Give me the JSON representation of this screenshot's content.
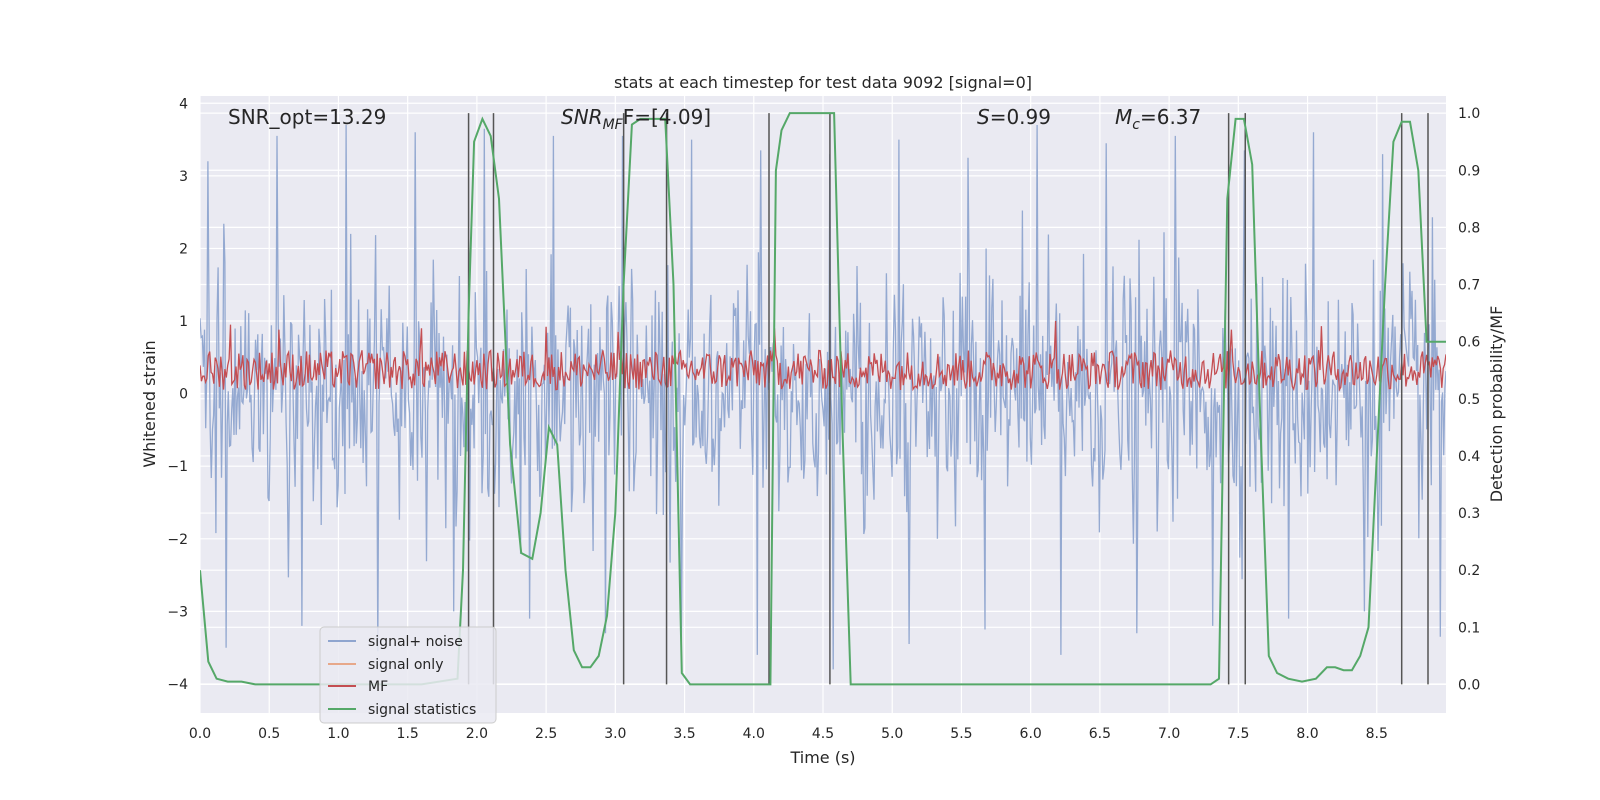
{
  "chart_data": {
    "type": "line",
    "title": "stats at each timestep for test data 9092 [signal=0]",
    "xlabel": "Time (s)",
    "ylabel": "Whitened strain",
    "y2label": "Detection probability/MF",
    "xlim": [
      0,
      9.0
    ],
    "ylim": [
      -4.4,
      4.1
    ],
    "y2lim": [
      -0.05,
      1.03
    ],
    "xticks": [
      0.0,
      0.5,
      1.0,
      1.5,
      2.0,
      2.5,
      3.0,
      3.5,
      4.0,
      4.5,
      5.0,
      5.5,
      6.0,
      6.5,
      7.0,
      7.5,
      8.0,
      8.5
    ],
    "xtick_labels": [
      "0.0",
      "0.5",
      "1.0",
      "1.5",
      "2.0",
      "2.5",
      "3.0",
      "3.5",
      "4.0",
      "4.5",
      "5.0",
      "5.5",
      "6.0",
      "6.5",
      "7.0",
      "7.5",
      "8.0",
      "8.5"
    ],
    "yticks": [
      4,
      3,
      2,
      1,
      0,
      -1,
      -2,
      -3,
      -4
    ],
    "ytick_labels": [
      "4",
      "3",
      "2",
      "1",
      "0",
      "−1",
      "−2",
      "−3",
      "−4"
    ],
    "y2ticks": [
      1.0,
      0.9,
      0.8,
      0.7,
      0.6,
      0.5,
      0.4,
      0.3,
      0.2,
      0.1,
      0.0
    ],
    "y2tick_labels": [
      "1.0",
      "0.9",
      "0.8",
      "0.7",
      "0.6",
      "0.5",
      "0.4",
      "0.3",
      "0.2",
      "0.1",
      "0.0"
    ],
    "grid": true,
    "legend_position": "lower-left",
    "annotations": {
      "snr_opt": "SNR_opt=13.29",
      "snr_mf_base": "SNR",
      "snr_mf_sub": "MF",
      "snr_mf_rest": "F=[4.09]",
      "s_base": "S",
      "s_rest": "=0.99",
      "mc_base": "M",
      "mc_sub": "c",
      "mc_rest": "=6.37"
    },
    "series": [
      {
        "name": "signal+ noise",
        "color": "#8fa5cf",
        "axis": "left",
        "description": "dense noise trace, mostly within ±2 with spikes to ±3.5",
        "band_mean": 0.0,
        "band_std": 0.85,
        "peaks_up": [
          3.2,
          3.55,
          3.7,
          3.6,
          3.65,
          3.55,
          3.55,
          3.5,
          3.35,
          3.3,
          3.5,
          3.25,
          3.7,
          3.45,
          3.55,
          3.35,
          3.6,
          3.3
        ],
        "peaks_down": [
          -3.5,
          -3.2,
          -3.55,
          -3.0,
          -3.1,
          -3.3,
          -3.4,
          -3.6,
          -3.8,
          -3.45,
          -3.25,
          -3.6,
          -3.3,
          -3.2,
          -3.1,
          -3.0,
          -3.35,
          -3.5
        ]
      },
      {
        "name": "signal only",
        "color": "#e7a88a",
        "axis": "left",
        "values": []
      },
      {
        "name": "MF",
        "color": "#c44e52",
        "axis": "left",
        "description": "matched-filter output, band approx 0.0 to 0.6 with spikes to ~0.95",
        "band_low": 0.05,
        "band_high": 0.6,
        "spikes": [
          {
            "x": 0.22,
            "y": 0.95
          },
          {
            "x": 0.57,
            "y": 0.88
          },
          {
            "x": 1.6,
            "y": 0.9
          },
          {
            "x": 2.5,
            "y": 0.92
          },
          {
            "x": 3.02,
            "y": 0.85
          },
          {
            "x": 4.15,
            "y": 0.9
          },
          {
            "x": 6.18,
            "y": 1.0
          },
          {
            "x": 7.45,
            "y": 0.88
          },
          {
            "x": 8.1,
            "y": 0.93
          }
        ]
      },
      {
        "name": "signal statistics",
        "color": "#55a868",
        "axis": "right",
        "x": [
          0.0,
          0.06,
          0.12,
          0.2,
          0.3,
          0.4,
          0.5,
          0.8,
          1.2,
          1.6,
          1.86,
          1.9,
          1.94,
          1.98,
          2.04,
          2.1,
          2.16,
          2.24,
          2.32,
          2.4,
          2.46,
          2.52,
          2.58,
          2.64,
          2.7,
          2.76,
          2.82,
          2.88,
          2.94,
          3.0,
          3.06,
          3.12,
          3.18,
          3.24,
          3.3,
          3.36,
          3.42,
          3.48,
          3.54,
          3.6,
          3.8,
          4.0,
          4.12,
          4.16,
          4.2,
          4.26,
          4.3,
          4.4,
          4.5,
          4.58,
          4.64,
          4.7,
          5.0,
          6.0,
          7.0,
          7.3,
          7.36,
          7.42,
          7.48,
          7.54,
          7.6,
          7.66,
          7.72,
          7.78,
          7.86,
          7.96,
          8.06,
          8.14,
          8.2,
          8.26,
          8.32,
          8.38,
          8.44,
          8.5,
          8.56,
          8.62,
          8.68,
          8.74,
          8.8,
          8.86,
          8.92,
          9.0
        ],
        "values": [
          0.2,
          0.04,
          0.01,
          0.005,
          0.005,
          0.0,
          0.0,
          0.0,
          0.0,
          0.0,
          0.01,
          0.2,
          0.65,
          0.95,
          0.99,
          0.96,
          0.85,
          0.42,
          0.23,
          0.22,
          0.3,
          0.45,
          0.42,
          0.2,
          0.06,
          0.03,
          0.03,
          0.05,
          0.12,
          0.3,
          0.7,
          0.98,
          0.99,
          0.99,
          0.99,
          0.99,
          0.7,
          0.02,
          0.0,
          0.0,
          0.0,
          0.0,
          0.0,
          0.9,
          0.97,
          1.0,
          1.0,
          1.0,
          1.0,
          1.0,
          0.45,
          0.0,
          0.0,
          0.0,
          0.0,
          0.0,
          0.01,
          0.85,
          0.99,
          0.99,
          0.91,
          0.45,
          0.05,
          0.02,
          0.01,
          0.005,
          0.01,
          0.03,
          0.03,
          0.025,
          0.025,
          0.05,
          0.1,
          0.4,
          0.7,
          0.95,
          0.985,
          0.985,
          0.9,
          0.6,
          0.6,
          0.6
        ]
      }
    ],
    "vertical_lines": [
      1.94,
      2.12,
      3.06,
      3.37,
      4.11,
      4.55,
      7.43,
      7.55,
      8.68,
      8.87
    ]
  }
}
